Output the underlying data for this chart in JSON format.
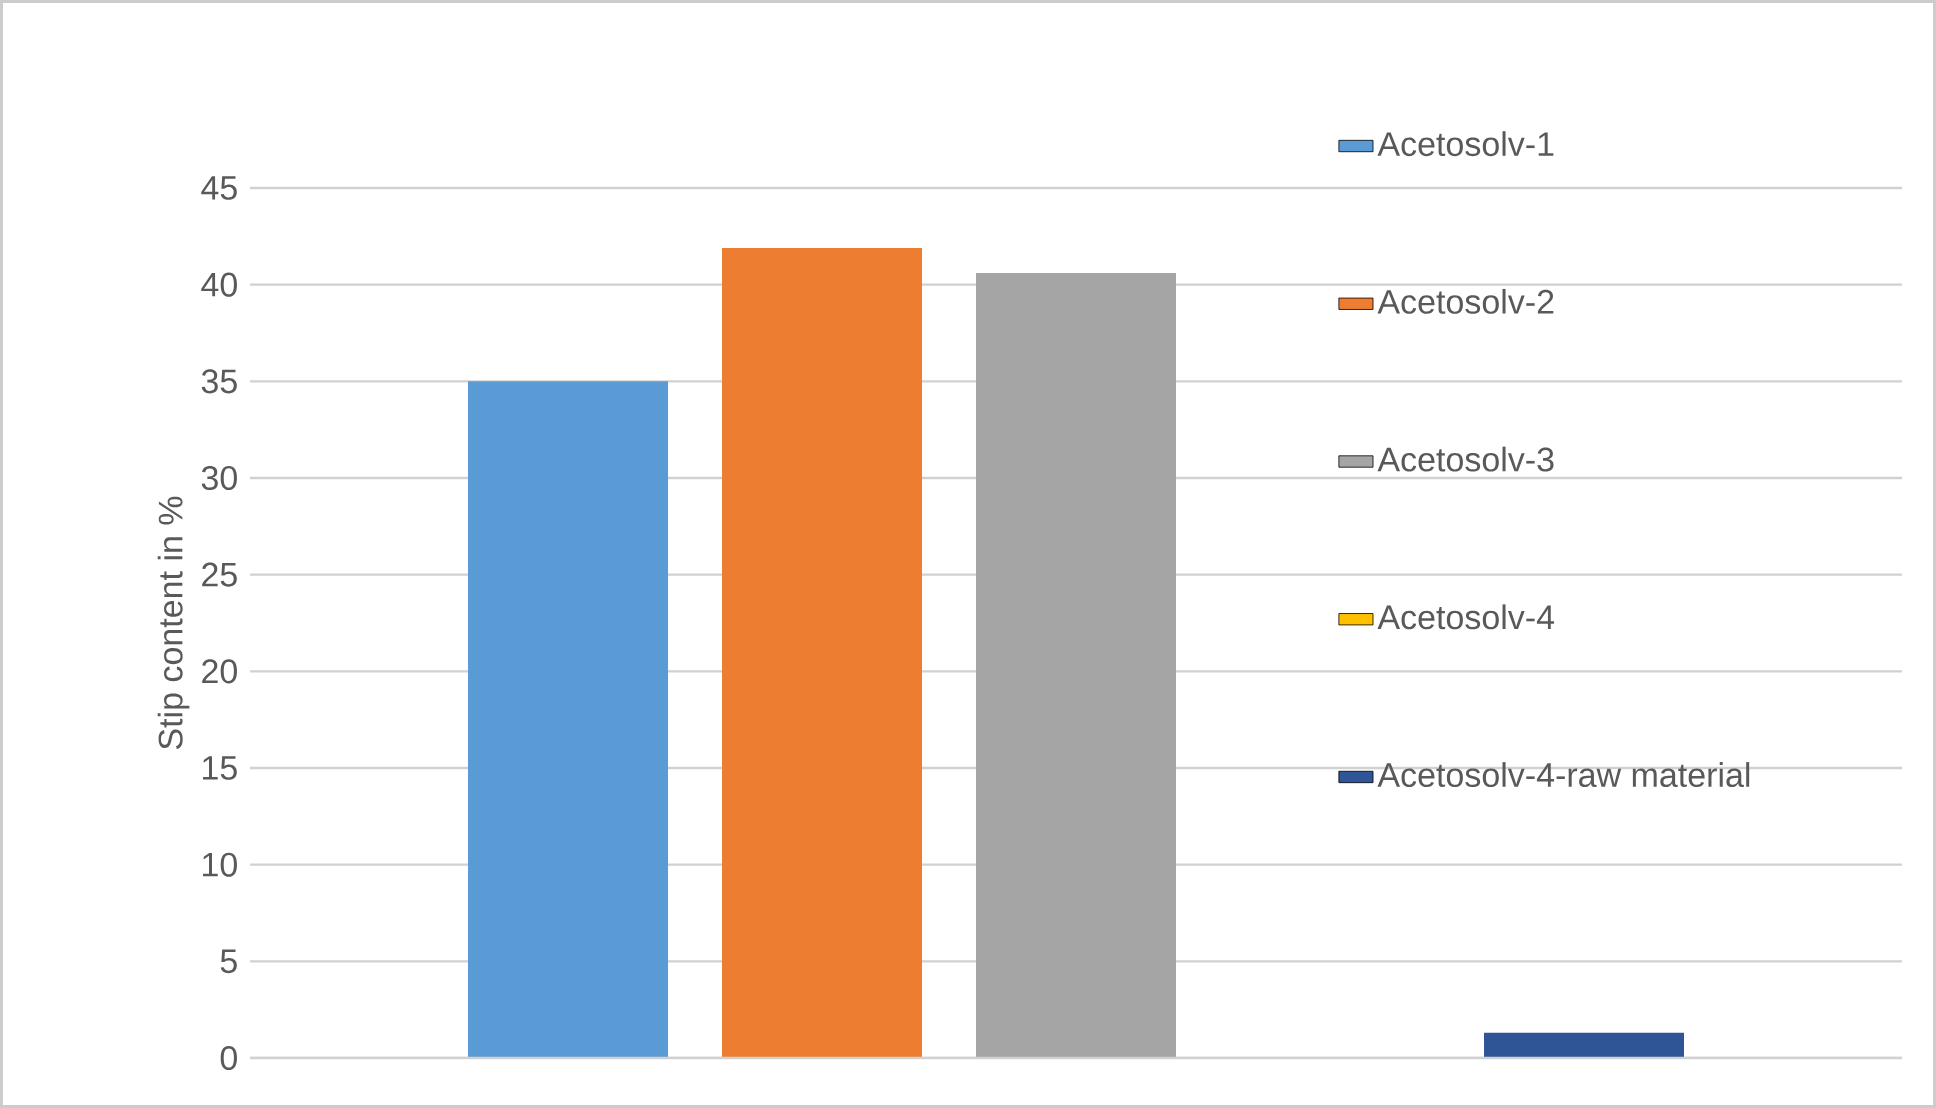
{
  "chart_data": {
    "type": "bar",
    "ylabel": "Stip content in %",
    "categories": [
      null
    ],
    "series": [
      {
        "name": "Acetosolv-1",
        "color": "#5b9bd5",
        "values": [
          35
        ]
      },
      {
        "name": "Acetosolv-2",
        "color": "#ed7d31",
        "values": [
          41.9
        ]
      },
      {
        "name": "Acetosolv-3",
        "color": "#a5a5a5",
        "values": [
          40.6
        ]
      },
      {
        "name": "Acetosolv-4",
        "color": "#ffc000",
        "values": [
          0
        ]
      },
      {
        "name": "Acetosolv-4-raw material",
        "color": "#2f5597",
        "values": [
          1.3
        ]
      }
    ],
    "ylim": [
      0,
      45
    ],
    "yticks": [
      0,
      5,
      10,
      15,
      20,
      25,
      30,
      35,
      40,
      45
    ],
    "grid": "y",
    "legend": "right",
    "tick_labels": "y"
  }
}
